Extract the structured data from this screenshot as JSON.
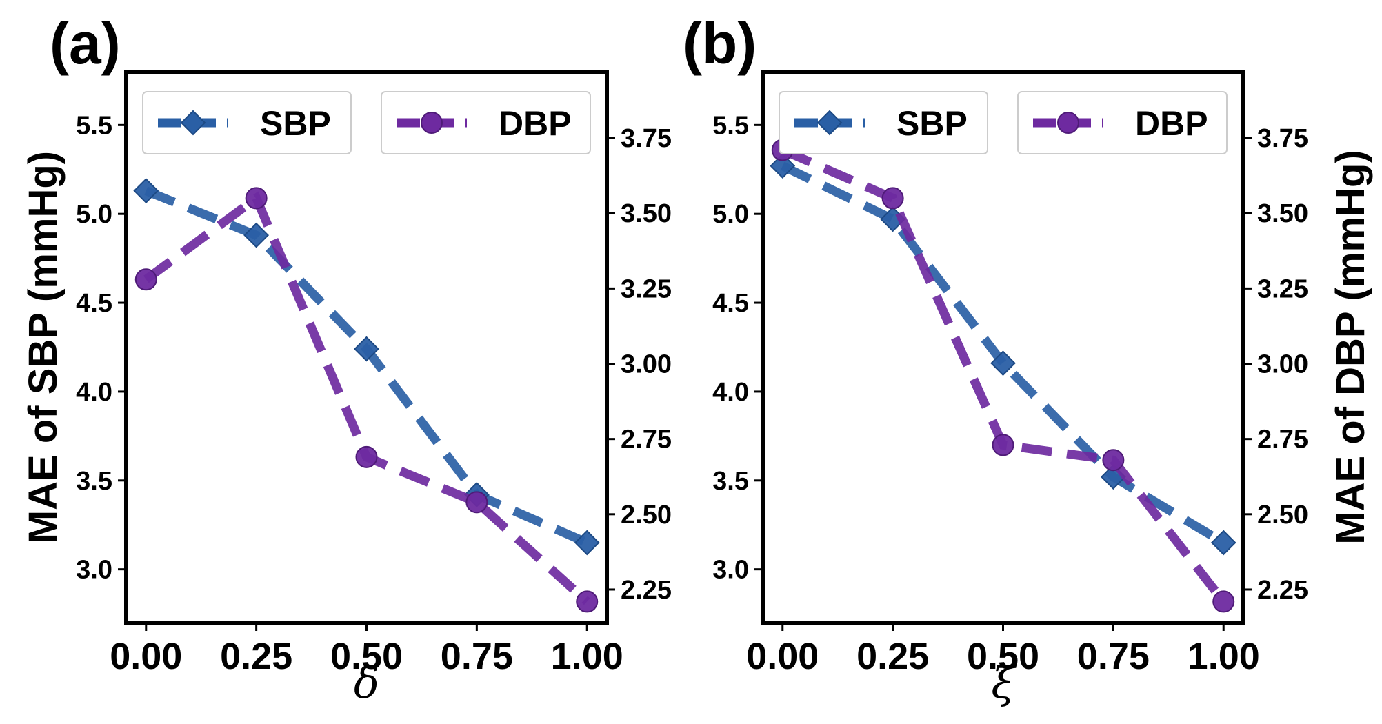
{
  "colors": {
    "sbp": "#2a5fa5",
    "dbp": "#6e2aa0",
    "frame": "#000000",
    "legend_border": "#cccccc"
  },
  "chart_data": [
    {
      "type": "line",
      "panel_label": "(a)",
      "xlabel": "δ",
      "ylabel_left": "MAE of SBP (mmHg)",
      "ylabel_right": "",
      "x": [
        0.0,
        0.25,
        0.5,
        0.75,
        1.0
      ],
      "x_tick_labels": [
        "0.00",
        "0.25",
        "0.50",
        "0.75",
        "1.00"
      ],
      "xlim": [
        -0.045,
        1.045
      ],
      "ylim_left": [
        2.7,
        5.8
      ],
      "yticks_left": [
        "3.0",
        "3.5",
        "4.0",
        "4.5",
        "5.0",
        "5.5"
      ],
      "ylim_right": [
        2.14,
        3.97
      ],
      "yticks_right": [
        "2.25",
        "2.50",
        "2.75",
        "3.00",
        "3.25",
        "3.50",
        "3.75"
      ],
      "legend": [
        "SBP",
        "DBP"
      ],
      "legend_position": "top",
      "series": [
        {
          "name": "SBP",
          "axis": "left",
          "marker": "diamond",
          "values": [
            5.13,
            4.88,
            4.24,
            3.42,
            3.15
          ]
        },
        {
          "name": "DBP",
          "axis": "right",
          "marker": "circle",
          "values": [
            3.28,
            3.55,
            2.69,
            2.54,
            2.21
          ]
        }
      ]
    },
    {
      "type": "line",
      "panel_label": "(b)",
      "xlabel": "ξ",
      "ylabel_left": "",
      "ylabel_right": "MAE of DBP (mmHg)",
      "x": [
        0.0,
        0.25,
        0.5,
        0.75,
        1.0
      ],
      "x_tick_labels": [
        "0.00",
        "0.25",
        "0.50",
        "0.75",
        "1.00"
      ],
      "xlim": [
        -0.045,
        1.045
      ],
      "ylim_left": [
        2.7,
        5.8
      ],
      "yticks_left": [
        "3.0",
        "3.5",
        "4.0",
        "4.5",
        "5.0",
        "5.5"
      ],
      "ylim_right": [
        2.14,
        3.97
      ],
      "yticks_right": [
        "2.25",
        "2.50",
        "2.75",
        "3.00",
        "3.25",
        "3.50",
        "3.75"
      ],
      "legend": [
        "SBP",
        "DBP"
      ],
      "legend_position": "top",
      "series": [
        {
          "name": "SBP",
          "axis": "left",
          "marker": "diamond",
          "values": [
            5.27,
            4.97,
            4.16,
            3.52,
            3.15
          ]
        },
        {
          "name": "DBP",
          "axis": "right",
          "marker": "circle",
          "values": [
            3.71,
            3.55,
            2.73,
            2.68,
            2.21
          ]
        }
      ]
    }
  ]
}
